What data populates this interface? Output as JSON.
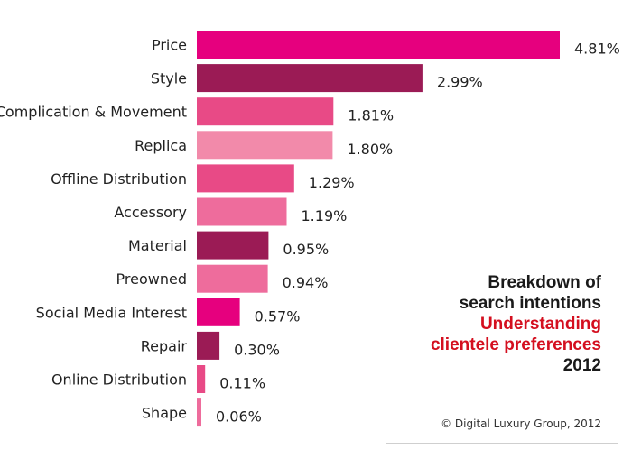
{
  "chart_data": {
    "type": "bar",
    "orientation": "horizontal",
    "categories": [
      "Price",
      "Style",
      "Complication & Movement",
      "Replica",
      "Offline Distribution",
      "Accessory",
      "Material",
      "Preowned",
      "Social Media Interest",
      "Repair",
      "Online Distribution",
      "Shape"
    ],
    "values": [
      4.81,
      2.99,
      1.81,
      1.8,
      1.29,
      1.19,
      0.95,
      0.94,
      0.57,
      0.3,
      0.11,
      0.06
    ],
    "value_labels": [
      "4.81%",
      "2.99%",
      "1.81%",
      "1.80%",
      "1.29%",
      "1.19%",
      "0.95%",
      "0.94%",
      "0.57%",
      "0.30%",
      "0.11%",
      "0.06%"
    ],
    "bar_colors": [
      "#e6007e",
      "#9b1b55",
      "#e84a86",
      "#f28aaa",
      "#e84a86",
      "#ee6c9c",
      "#9b1b55",
      "#ee6c9c",
      "#e6007e",
      "#9b1b55",
      "#e84a86",
      "#ee6c9c"
    ],
    "title_lines": [
      {
        "text": "Breakdown of",
        "color": "black"
      },
      {
        "text": "search intentions",
        "color": "black"
      },
      {
        "text": "Understanding",
        "color": "red"
      },
      {
        "text": "clientele preferences",
        "color": "red"
      },
      {
        "text": "2012",
        "color": "black"
      }
    ],
    "credit": "© Digital Luxury Group, 2012",
    "xlim": [
      0,
      4.81
    ],
    "grid": false,
    "legend": "none"
  }
}
